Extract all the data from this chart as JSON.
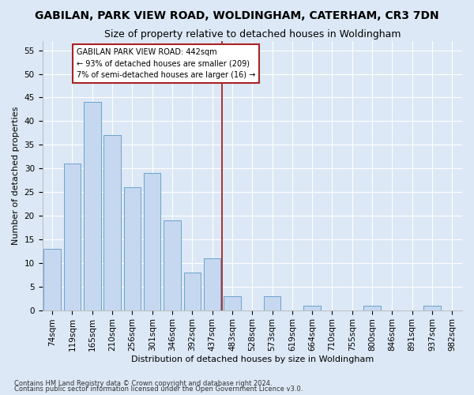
{
  "title": "GABILAN, PARK VIEW ROAD, WOLDINGHAM, CATERHAM, CR3 7DN",
  "subtitle": "Size of property relative to detached houses in Woldingham",
  "xlabel": "Distribution of detached houses by size in Woldingham",
  "ylabel": "Number of detached properties",
  "footnote1": "Contains HM Land Registry data © Crown copyright and database right 2024.",
  "footnote2": "Contains public sector information licensed under the Open Government Licence v3.0.",
  "categories": [
    "74sqm",
    "119sqm",
    "165sqm",
    "210sqm",
    "256sqm",
    "301sqm",
    "346sqm",
    "392sqm",
    "437sqm",
    "483sqm",
    "528sqm",
    "573sqm",
    "619sqm",
    "664sqm",
    "710sqm",
    "755sqm",
    "800sqm",
    "846sqm",
    "891sqm",
    "937sqm",
    "982sqm"
  ],
  "values": [
    13,
    31,
    44,
    37,
    26,
    29,
    19,
    8,
    11,
    3,
    0,
    3,
    0,
    1,
    0,
    0,
    1,
    0,
    0,
    1,
    0
  ],
  "bar_color": "#c5d8f0",
  "bar_edge_color": "#6ba3cc",
  "property_line_x": 8.5,
  "annotation_text1": "GABILAN PARK VIEW ROAD: 442sqm",
  "annotation_text2": "← 93% of detached houses are smaller (209)",
  "annotation_text3": "7% of semi-detached houses are larger (16) →",
  "ylim": [
    0,
    57
  ],
  "yticks": [
    0,
    5,
    10,
    15,
    20,
    25,
    30,
    35,
    40,
    45,
    50,
    55
  ],
  "background_color": "#dce8f5",
  "plot_bg_color": "#dce8f5",
  "grid_color": "#ffffff",
  "title_fontsize": 10,
  "subtitle_fontsize": 9,
  "axis_label_fontsize": 8,
  "tick_fontsize": 7.5,
  "footnote_fontsize": 6
}
